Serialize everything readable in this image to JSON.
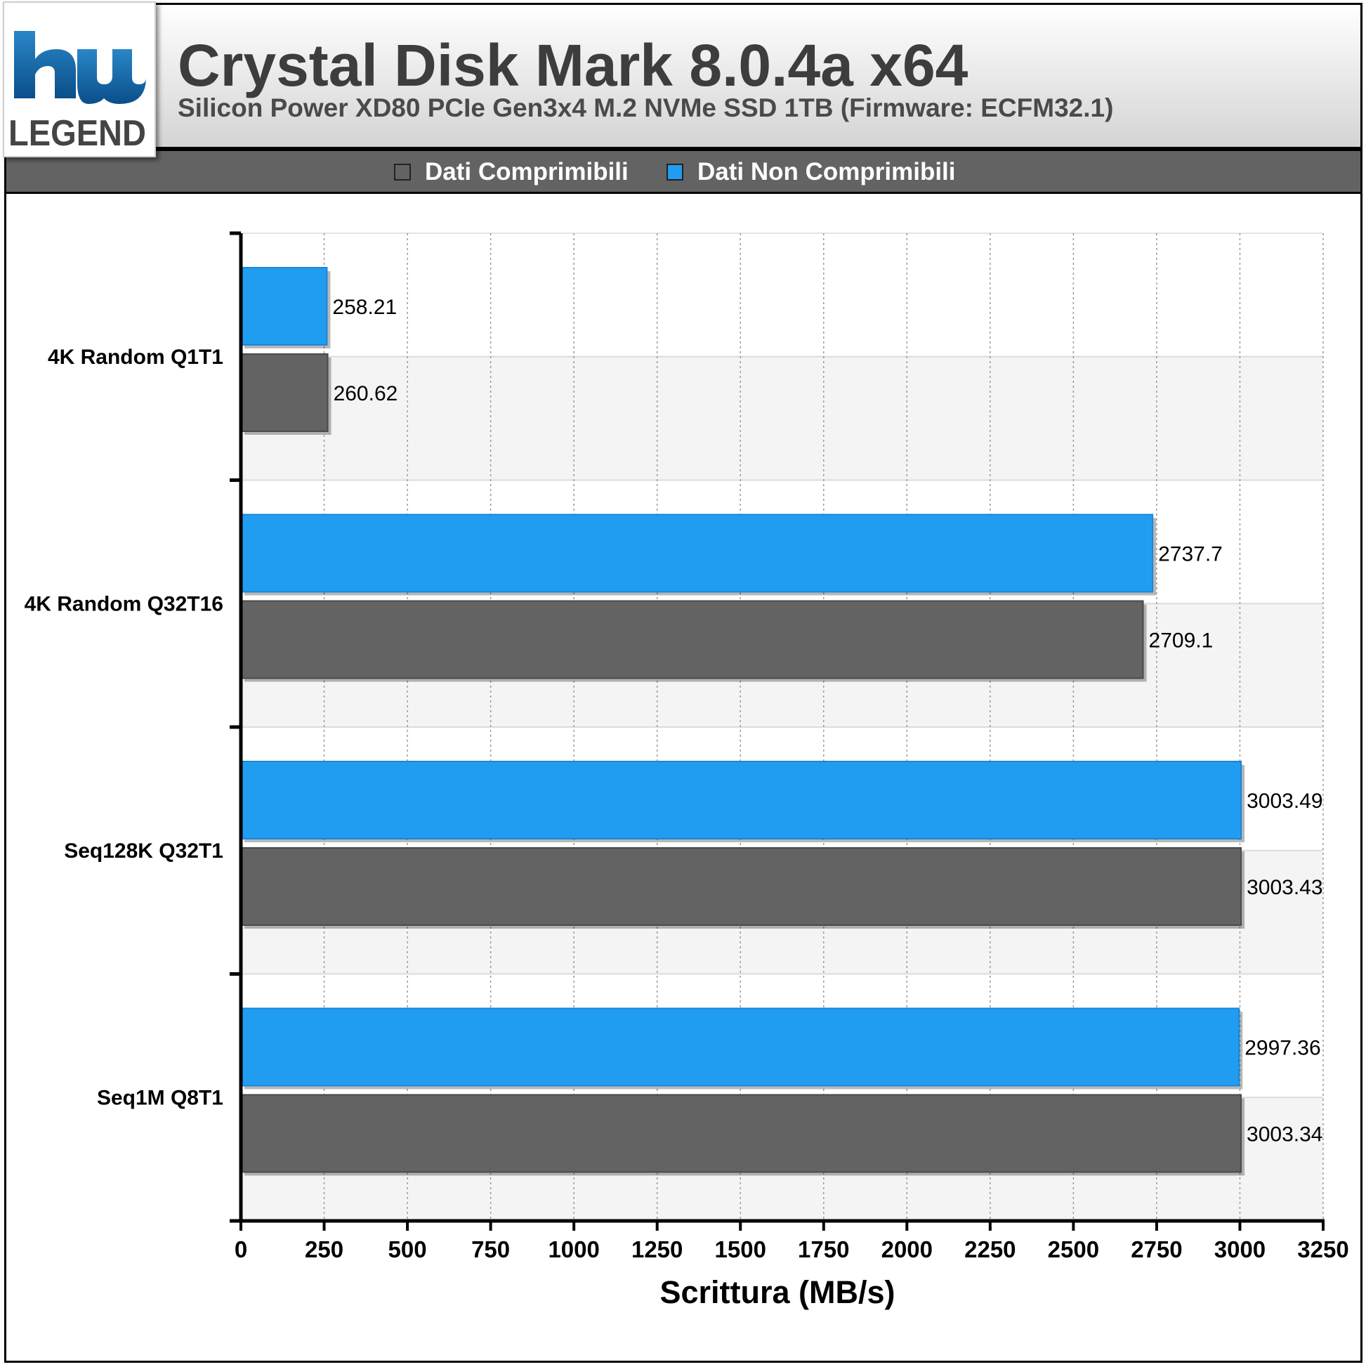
{
  "header": {
    "title": "Crystal Disk Mark 8.0.4a x64",
    "subtitle": "Silicon Power XD80 PCIe Gen3x4 M.2 NVMe SSD 1TB (Firmware: ECFM32.1)",
    "logo_text": "hwLEGEND"
  },
  "legend": [
    {
      "label": "Dati Comprimibili",
      "color": "#636363"
    },
    {
      "label": "Dati Non Comprimibili",
      "color": "#209df0"
    }
  ],
  "chart_data": {
    "type": "bar",
    "orientation": "horizontal",
    "categories": [
      "4K Random Q1T1",
      "4K Random Q32T16",
      "Seq128K Q32T1",
      "Seq1M Q8T1"
    ],
    "series": [
      {
        "name": "Dati Non Comprimibili",
        "color": "#209df0",
        "values": [
          258.21,
          2737.7,
          3003.49,
          2997.36
        ]
      },
      {
        "name": "Dati Comprimibili",
        "color": "#636363",
        "values": [
          260.62,
          2709.1,
          3003.43,
          3003.34
        ]
      }
    ],
    "value_labels": [
      [
        "258.21",
        "2737.7",
        "3003.49",
        "2997.36"
      ],
      [
        "260.62",
        "2709.1",
        "3003.43",
        "3003.34"
      ]
    ],
    "xlabel": "Scrittura (MB/s)",
    "ylabel": "",
    "xlim": [
      0,
      3250
    ],
    "xticks": [
      "0",
      "250",
      "500",
      "750",
      "1000",
      "1250",
      "1500",
      "1750",
      "2000",
      "2250",
      "2500",
      "2750",
      "3000",
      "3250"
    ],
    "grid": true,
    "legend_position": "top"
  }
}
